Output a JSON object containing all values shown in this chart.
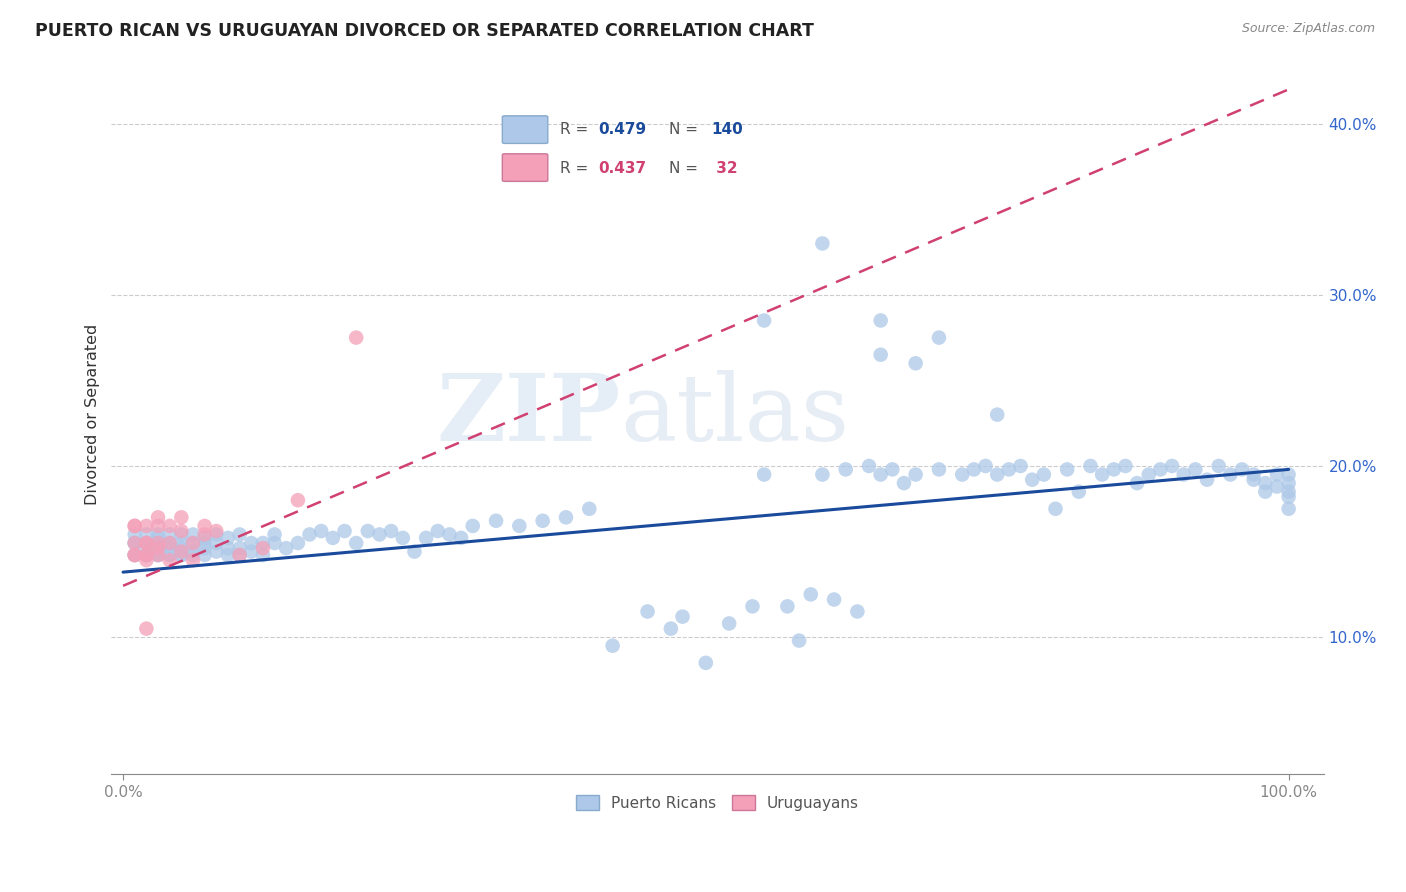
{
  "title": "PUERTO RICAN VS URUGUAYAN DIVORCED OR SEPARATED CORRELATION CHART",
  "source": "Source: ZipAtlas.com",
  "ylabel_label": "Divorced or Separated",
  "ytick_values": [
    0.1,
    0.2,
    0.3,
    0.4
  ],
  "xlim": [
    -0.01,
    1.03
  ],
  "ylim": [
    0.02,
    0.44
  ],
  "blue_line_R": 0.479,
  "blue_line_N": 140,
  "pink_line_R": 0.437,
  "pink_line_N": 32,
  "blue_color": "#adc8e8",
  "blue_line_color": "#1a4a9c",
  "pink_color": "#f4a0b8",
  "pink_line_color": "#d04070",
  "watermark_zip": "ZIP",
  "watermark_atlas": "atlas",
  "blue_line_start_x": 0.0,
  "blue_line_start_y": 0.138,
  "blue_line_end_x": 1.0,
  "blue_line_end_y": 0.198,
  "pink_line_start_x": 0.0,
  "pink_line_start_y": 0.13,
  "pink_line_end_x": 1.0,
  "pink_line_end_y": 0.42,
  "blue_scatter_x": [
    0.01,
    0.01,
    0.01,
    0.01,
    0.01,
    0.02,
    0.02,
    0.02,
    0.02,
    0.02,
    0.02,
    0.03,
    0.03,
    0.03,
    0.03,
    0.03,
    0.03,
    0.03,
    0.03,
    0.04,
    0.04,
    0.04,
    0.04,
    0.04,
    0.04,
    0.05,
    0.05,
    0.05,
    0.05,
    0.05,
    0.06,
    0.06,
    0.06,
    0.06,
    0.07,
    0.07,
    0.07,
    0.07,
    0.08,
    0.08,
    0.08,
    0.09,
    0.09,
    0.09,
    0.1,
    0.1,
    0.1,
    0.11,
    0.11,
    0.12,
    0.12,
    0.13,
    0.13,
    0.14,
    0.15,
    0.16,
    0.17,
    0.18,
    0.19,
    0.2,
    0.21,
    0.22,
    0.23,
    0.24,
    0.25,
    0.26,
    0.27,
    0.28,
    0.29,
    0.3,
    0.32,
    0.34,
    0.36,
    0.38,
    0.4,
    0.42,
    0.45,
    0.47,
    0.48,
    0.5,
    0.52,
    0.54,
    0.55,
    0.57,
    0.58,
    0.59,
    0.6,
    0.61,
    0.62,
    0.63,
    0.64,
    0.65,
    0.66,
    0.67,
    0.68,
    0.7,
    0.72,
    0.73,
    0.74,
    0.75,
    0.76,
    0.77,
    0.78,
    0.79,
    0.8,
    0.81,
    0.82,
    0.83,
    0.84,
    0.85,
    0.86,
    0.87,
    0.88,
    0.89,
    0.9,
    0.91,
    0.92,
    0.93,
    0.94,
    0.95,
    0.96,
    0.97,
    0.97,
    0.98,
    0.98,
    0.99,
    0.99,
    1.0,
    1.0,
    1.0,
    1.0,
    1.0,
    0.55,
    0.6,
    0.65,
    0.65,
    0.68,
    0.7,
    0.75
  ],
  "blue_scatter_y": [
    0.155,
    0.148,
    0.155,
    0.16,
    0.148,
    0.148,
    0.152,
    0.155,
    0.16,
    0.148,
    0.155,
    0.148,
    0.152,
    0.155,
    0.158,
    0.148,
    0.152,
    0.155,
    0.16,
    0.148,
    0.15,
    0.155,
    0.16,
    0.148,
    0.152,
    0.148,
    0.152,
    0.155,
    0.16,
    0.148,
    0.15,
    0.155,
    0.16,
    0.148,
    0.152,
    0.155,
    0.158,
    0.148,
    0.15,
    0.155,
    0.16,
    0.148,
    0.152,
    0.158,
    0.148,
    0.152,
    0.16,
    0.15,
    0.155,
    0.148,
    0.155,
    0.155,
    0.16,
    0.152,
    0.155,
    0.16,
    0.162,
    0.158,
    0.162,
    0.155,
    0.162,
    0.16,
    0.162,
    0.158,
    0.15,
    0.158,
    0.162,
    0.16,
    0.158,
    0.165,
    0.168,
    0.165,
    0.168,
    0.17,
    0.175,
    0.095,
    0.115,
    0.105,
    0.112,
    0.085,
    0.108,
    0.118,
    0.195,
    0.118,
    0.098,
    0.125,
    0.195,
    0.122,
    0.198,
    0.115,
    0.2,
    0.195,
    0.198,
    0.19,
    0.195,
    0.198,
    0.195,
    0.198,
    0.2,
    0.195,
    0.198,
    0.2,
    0.192,
    0.195,
    0.175,
    0.198,
    0.185,
    0.2,
    0.195,
    0.198,
    0.2,
    0.19,
    0.195,
    0.198,
    0.2,
    0.195,
    0.198,
    0.192,
    0.2,
    0.195,
    0.198,
    0.195,
    0.192,
    0.19,
    0.185,
    0.195,
    0.188,
    0.195,
    0.19,
    0.185,
    0.182,
    0.175,
    0.285,
    0.33,
    0.265,
    0.285,
    0.26,
    0.275,
    0.23
  ],
  "pink_scatter_x": [
    0.01,
    0.01,
    0.01,
    0.01,
    0.01,
    0.02,
    0.02,
    0.02,
    0.02,
    0.02,
    0.02,
    0.02,
    0.03,
    0.03,
    0.03,
    0.03,
    0.03,
    0.04,
    0.04,
    0.04,
    0.05,
    0.05,
    0.05,
    0.06,
    0.06,
    0.07,
    0.07,
    0.08,
    0.1,
    0.12,
    0.15,
    0.2
  ],
  "pink_scatter_y": [
    0.165,
    0.155,
    0.148,
    0.165,
    0.148,
    0.148,
    0.155,
    0.148,
    0.165,
    0.155,
    0.145,
    0.105,
    0.152,
    0.165,
    0.17,
    0.148,
    0.155,
    0.145,
    0.155,
    0.165,
    0.15,
    0.162,
    0.17,
    0.145,
    0.155,
    0.16,
    0.165,
    0.162,
    0.148,
    0.152,
    0.18,
    0.275
  ]
}
